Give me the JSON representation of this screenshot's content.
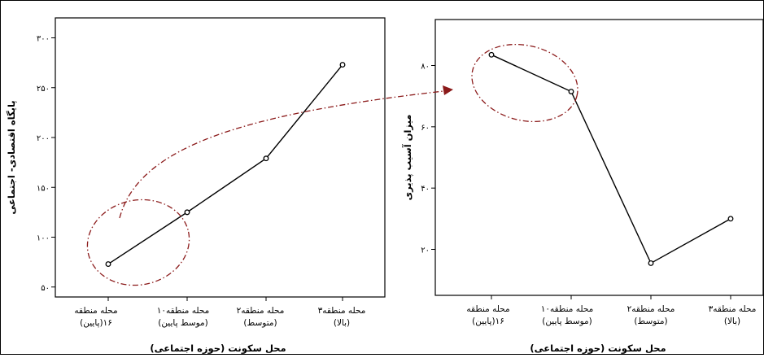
{
  "chart_data": [
    {
      "type": "line",
      "xlabel": "محل سکونت (حوزه اجتماعی)",
      "ylabel": "پایگاه اقتصادی- اجتماعی",
      "categories": [
        [
          "محله منطقه",
          "۱۶(پایین)"
        ],
        [
          "محله منطقه۱۰",
          "(موسط پایین)"
        ],
        [
          "محله منطقه۲",
          "(متوسط)"
        ],
        [
          "محله منطقه۳",
          "(بالا)"
        ]
      ],
      "values": [
        73,
        125,
        179,
        273
      ],
      "yticks": [
        50,
        100,
        150,
        200,
        250,
        300
      ],
      "ytick_labels": [
        "۵۰",
        "۱۰۰",
        "۱۵۰",
        "۲۰۰",
        "۲۵۰",
        "۳۰۰"
      ],
      "ylim": [
        40,
        320
      ],
      "grid": false
    },
    {
      "type": "line",
      "xlabel": "محل سکونت (حوزه اجتماعی)",
      "ylabel": "میزان آسیب پذیری",
      "categories": [
        [
          "محله منطقه",
          "۱۶(پایین)"
        ],
        [
          "محله منطقه۱۰",
          "(موسط پایین)"
        ],
        [
          "محله منطقه۲",
          "(متوسط)"
        ],
        [
          "محله منطقه۳",
          "(بالا)"
        ]
      ],
      "values": [
        83.5,
        71.5,
        15.5,
        30
      ],
      "yticks": [
        20,
        40,
        60,
        80
      ],
      "ytick_labels": [
        "۲۰",
        "۴۰",
        "۶۰",
        "۸۰"
      ],
      "ylim": [
        5,
        95
      ],
      "grid": false
    }
  ],
  "annotations": {
    "line_color": "#000000",
    "highlight_color": "#8b1a1a"
  }
}
